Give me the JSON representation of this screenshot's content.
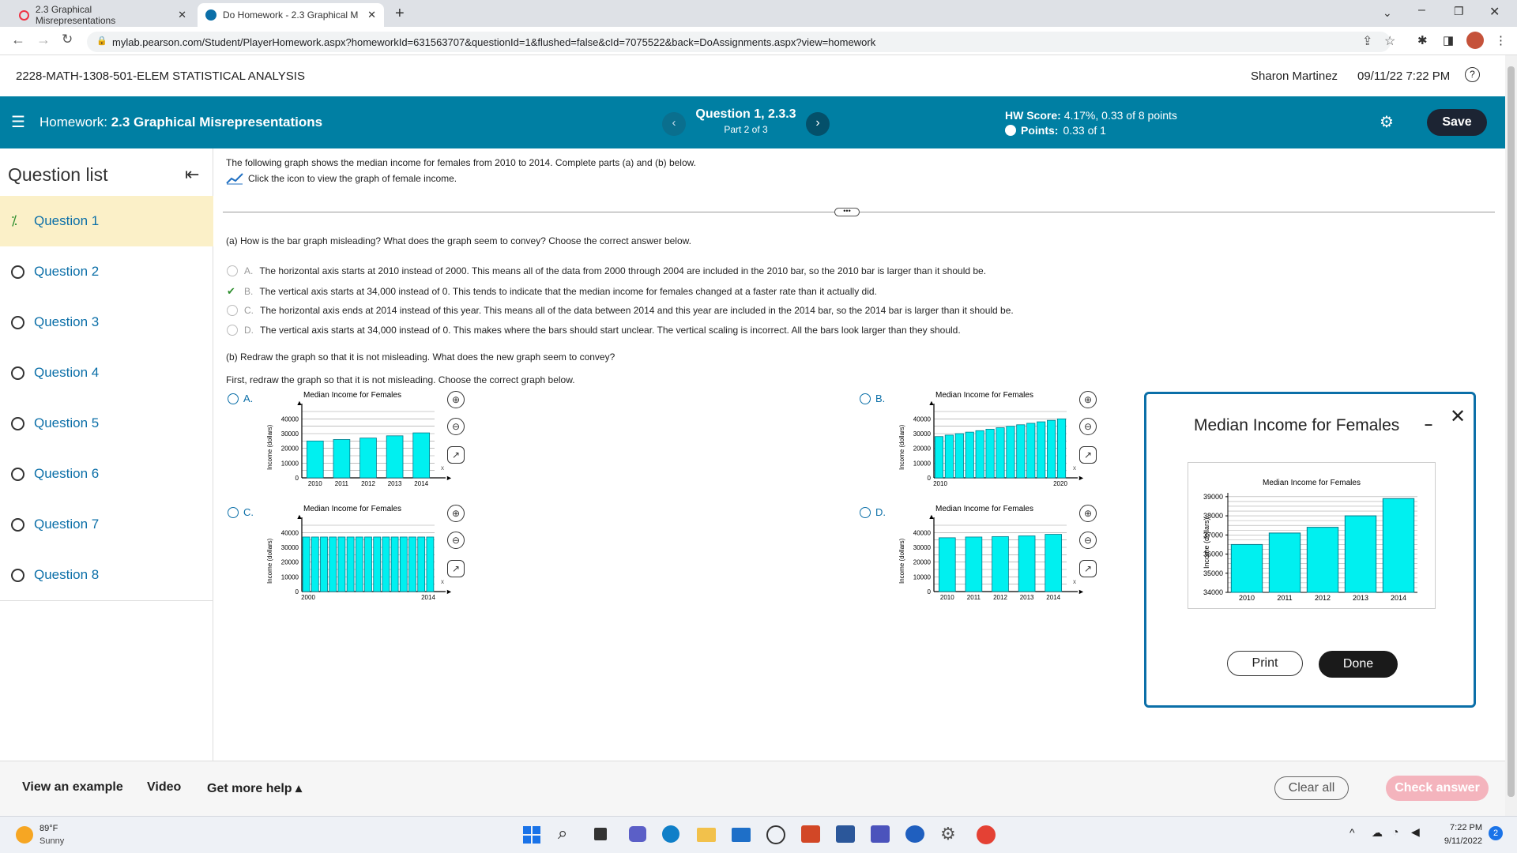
{
  "browser": {
    "tabs": [
      {
        "title": "2.3 Graphical Misrepresentations",
        "close": "✕"
      },
      {
        "title": "Do Homework - 2.3 Graphical M",
        "close": "✕"
      }
    ],
    "url": "mylab.pearson.com/Student/PlayerHomework.aspx?homeworkId=631563707&questionId=1&flushed=false&cId=7075522&back=DoAssignments.aspx?view=homework"
  },
  "header": {
    "course": "2228-MATH-1308-501-ELEM STATISTICAL ANALYSIS",
    "user": "Sharon Martinez",
    "datetime": "09/11/22 7:22 PM"
  },
  "bar": {
    "homework_prefix": "Homework:",
    "homework_title": "2.3 Graphical Misrepresentations",
    "question": "Question 1, 2.3.3",
    "part": "Part 2 of 3",
    "hw_score_label": "HW Score:",
    "hw_score_value": "4.17%, 0.33 of 8 points",
    "points_label": "Points:",
    "points_value": "0.33 of 1",
    "save": "Save"
  },
  "sidebar": {
    "title": "Question list",
    "items": [
      "Question 1",
      "Question 2",
      "Question 3",
      "Question 4",
      "Question 5",
      "Question 6",
      "Question 7",
      "Question 8"
    ]
  },
  "question": {
    "intro": "The following graph shows the median income for females from 2010 to 2014. Complete parts (a) and (b) below.",
    "icon_hint": "Click the icon to view the graph of female income.",
    "part_a": "(a) How is the bar graph misleading? What does the graph seem to convey? Choose the correct answer below.",
    "options_a": [
      {
        "letter": "A.",
        "text": "The horizontal axis starts at 2010 instead of 2000. This means all of the data from 2000 through 2004 are included in the 2010 bar, so the 2010 bar is larger than it should be."
      },
      {
        "letter": "B.",
        "text": "The vertical axis starts at 34,000 instead of 0. This tends to indicate that the median income for females changed at a faster rate than it actually did."
      },
      {
        "letter": "C.",
        "text": "The horizontal axis ends at 2014 instead of this year. This means all of the data between 2014 and this year are included in the 2014 bar, so the 2014 bar is larger than it should be."
      },
      {
        "letter": "D.",
        "text": "The vertical axis starts at 34,000 instead of 0. This makes where the bars should start unclear. The vertical scaling is incorrect. All the bars look larger than they should."
      }
    ],
    "part_b": "(b) Redraw the graph so that it is not misleading. What does the new graph seem to convey?",
    "part_b_first": "First, redraw the graph so that it is not misleading. Choose the correct graph below.",
    "graph_options": [
      "A.",
      "B.",
      "C.",
      "D."
    ]
  },
  "mini_charts": {
    "title": "Median Income for Females",
    "ylabel": "Income (dollars)",
    "yticks": [
      "40000",
      "30000",
      "20000",
      "10000",
      "0"
    ],
    "x_marker": "x",
    "A": {
      "xticks": [
        "2010",
        "2011",
        "2012",
        "2013",
        "2014"
      ],
      "values": [
        25000,
        26000,
        27000,
        28500,
        30500
      ]
    },
    "B": {
      "xticks": [
        "2010",
        "2020"
      ],
      "values": [
        28000,
        29000,
        30000,
        31000,
        32000,
        33000,
        34000,
        35000,
        36000,
        37000,
        38000,
        39000,
        40000
      ]
    },
    "C": {
      "xticks": [
        "2000",
        "2014"
      ],
      "values": [
        37000,
        37000,
        37000,
        37000,
        37000,
        37000,
        37000,
        37000,
        37000,
        37000,
        37000,
        37000,
        37000,
        37000,
        37000
      ]
    },
    "D": {
      "xticks": [
        "2010",
        "2011",
        "2012",
        "2013",
        "2014"
      ],
      "values": [
        36500,
        37000,
        37300,
        37800,
        38800
      ]
    }
  },
  "popup": {
    "heading": "Median Income for Females",
    "print": "Print",
    "done": "Done"
  },
  "chart_data": {
    "type": "bar",
    "title": "Median Income for Females",
    "ylabel": "Income (dollars)",
    "xlabel": "",
    "categories": [
      "2010",
      "2011",
      "2012",
      "2013",
      "2014"
    ],
    "values": [
      36500,
      37100,
      37400,
      38000,
      38900
    ],
    "ylim": [
      34000,
      39000
    ],
    "yticks": [
      "39000",
      "38000",
      "37000",
      "36000",
      "35000",
      "34000"
    ]
  },
  "footer": {
    "view_example": "View an example",
    "video": "Video",
    "more_help": "Get more help ▴",
    "clear_all": "Clear all",
    "check_answer": "Check answer"
  },
  "taskbar": {
    "weather_temp": "89°F",
    "weather_desc": "Sunny",
    "time": "7:22 PM",
    "date": "9/11/2022",
    "badge": "2"
  }
}
